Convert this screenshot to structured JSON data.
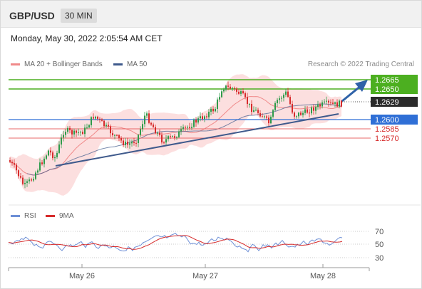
{
  "header": {
    "pair": "GBP/USD",
    "timeframe": "30 MIN"
  },
  "timestamp": "Monday, May 30, 2022 2:05:54 AM CET",
  "legend": {
    "ma20": {
      "label": "MA 20 + Bollinger Bands",
      "color": "#f08a8a"
    },
    "ma50": {
      "label": "MA 50",
      "color": "#3f5a8c"
    },
    "rsi": {
      "label": "RSI",
      "color": "#6d8fd6"
    },
    "ma9": {
      "label": "9MA",
      "color": "#d62b2b"
    }
  },
  "credit": "Research © 2022 Trading Central",
  "chart_data": {
    "type": "candlestick",
    "x_ticks": [
      "May 26",
      "May 27",
      "May 28"
    ],
    "price_levels": [
      {
        "value": "1.2665",
        "style": "green"
      },
      {
        "value": "1.2650",
        "style": "green"
      },
      {
        "value": "1.2629",
        "style": "current"
      },
      {
        "value": "1.2600",
        "style": "blue"
      },
      {
        "value": "1.2585",
        "style": "red"
      },
      {
        "value": "1.2570",
        "style": "red"
      }
    ],
    "rsi_levels": [
      "70",
      "50",
      "30"
    ],
    "colors": {
      "up": "#2e9b4a",
      "down": "#d62b2b",
      "support": "#3f5a8c",
      "resistance": "#4caf20",
      "arrow": "#2f62a8",
      "band": "#fbd9d9"
    }
  }
}
